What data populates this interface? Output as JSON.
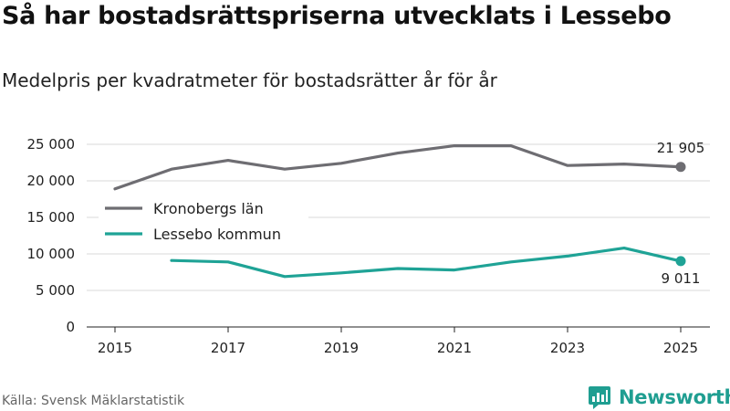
{
  "header": {
    "title": "Så har bostadsrättspriserna utvecklats i Lessebo",
    "subtitle": "Medelpris per kvadratmeter för bostadsrätter år för år"
  },
  "footer": {
    "source": "Källa: Svensk Mäklarstatistik",
    "brand": "Newsworthy"
  },
  "chart_data": {
    "type": "line",
    "title": "Så har bostadsrättspriserna utvecklats i Lessebo",
    "subtitle": "Medelpris per kvadratmeter för bostadsrätter år för år",
    "xlabel": "",
    "ylabel": "",
    "xlim": [
      2015,
      2025
    ],
    "ylim": [
      0,
      25000
    ],
    "x_ticks": [
      2015,
      2017,
      2019,
      2021,
      2023,
      2025
    ],
    "x_tick_labels": [
      "2015",
      "2017",
      "2019",
      "2021",
      "2023",
      "2025"
    ],
    "y_ticks": [
      0,
      5000,
      10000,
      15000,
      20000,
      25000
    ],
    "y_tick_labels": [
      "0",
      "5 000",
      "10 000",
      "15 000",
      "20 000",
      "25 000"
    ],
    "grid": true,
    "legend_position": "left",
    "series": [
      {
        "name": "Kronobergs län",
        "color": "#6e6d72",
        "x": [
          2015,
          2016,
          2017,
          2018,
          2019,
          2020,
          2021,
          2022,
          2023,
          2024,
          2025
        ],
        "values": [
          18900,
          21600,
          22800,
          21600,
          22400,
          23800,
          24800,
          24800,
          22100,
          22300,
          21905
        ],
        "end_label": "21 905"
      },
      {
        "name": "Lessebo kommun",
        "color": "#1fa396",
        "x": [
          2016,
          2017,
          2018,
          2019,
          2020,
          2021,
          2022,
          2023,
          2024,
          2025
        ],
        "values": [
          9100,
          8900,
          6900,
          7400,
          8000,
          7800,
          8900,
          9700,
          10800,
          9011
        ],
        "end_label": "9 011"
      }
    ]
  }
}
